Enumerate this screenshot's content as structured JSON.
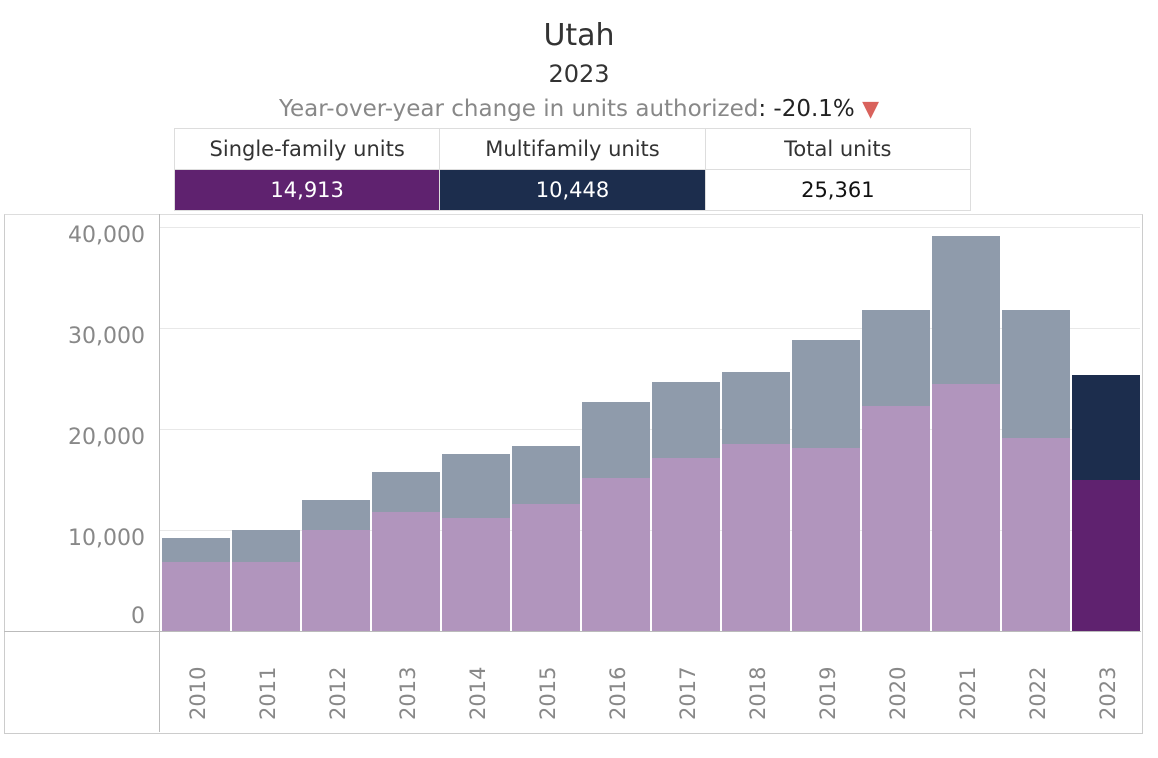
{
  "header": {
    "title": "Utah",
    "year": "2023",
    "yoy_label": "Year-over-year change in units authorized",
    "yoy_value": ": -20.1%",
    "yoy_direction": "▼"
  },
  "summary": {
    "headers": [
      "Single-family units",
      "Multifamily units",
      "Total units"
    ],
    "values": [
      "14,913",
      "10,448",
      "25,361"
    ]
  },
  "colors": {
    "sf_hist": "#b195bd",
    "mf_hist": "#8f9bab",
    "sf_current": "#5f226f",
    "mf_current": "#1c2d4d",
    "down": "#d9625c"
  },
  "chart_data": {
    "type": "bar",
    "stacked": true,
    "title": "Utah",
    "ylim": [
      0,
      40000
    ],
    "yticks": [
      "0",
      "10,000",
      "20,000",
      "30,000",
      "40,000"
    ],
    "yticks_values": [
      0,
      10000,
      20000,
      30000,
      40000
    ],
    "categories": [
      "2010",
      "2011",
      "2012",
      "2013",
      "2014",
      "2015",
      "2016",
      "2017",
      "2018",
      "2019",
      "2020",
      "2021",
      "2022",
      "2023"
    ],
    "series": [
      {
        "name": "Single-family units",
        "values": [
          6800,
          6800,
          10000,
          11800,
          11200,
          12600,
          15100,
          17100,
          18500,
          18100,
          22300,
          24500,
          19100,
          14913
        ]
      },
      {
        "name": "Multifamily units",
        "values": [
          2400,
          3200,
          3000,
          3900,
          6300,
          5700,
          7600,
          7600,
          7100,
          10700,
          9500,
          14600,
          12700,
          10448
        ]
      }
    ],
    "grid": true
  }
}
